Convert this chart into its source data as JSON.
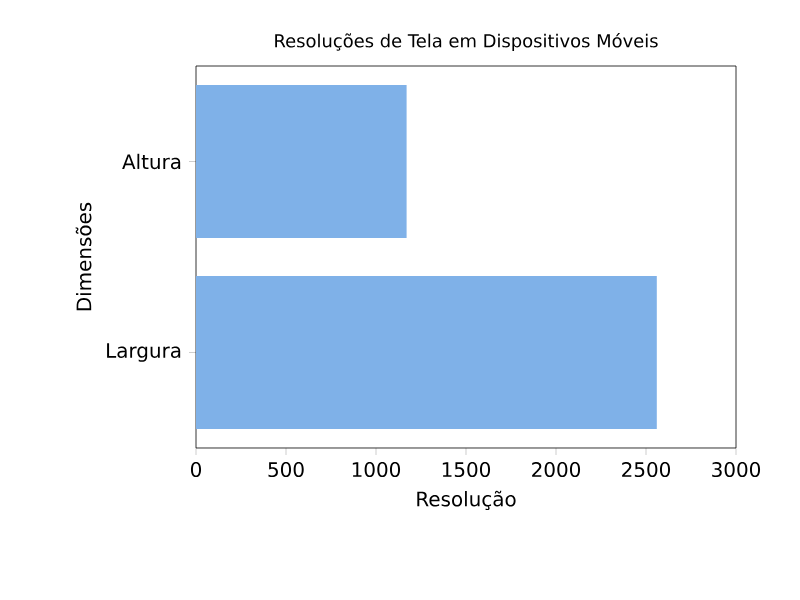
{
  "chart_data": {
    "type": "bar",
    "orientation": "horizontal",
    "title": "Resoluções de Tela em Dispositivos Móveis",
    "xlabel": "Resolução",
    "ylabel": "Dimensões",
    "categories": [
      "Altura",
      "Largura"
    ],
    "values": [
      1170,
      2560
    ],
    "color": "#7fb1e8",
    "xlim": [
      0,
      3000
    ],
    "xticks": [
      0,
      500,
      1000,
      1500,
      2000,
      2500,
      3000
    ],
    "grid": false
  }
}
